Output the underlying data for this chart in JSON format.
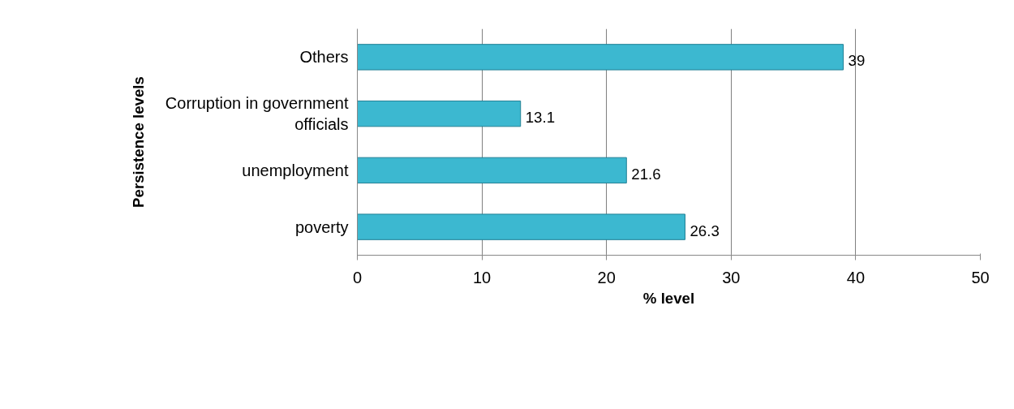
{
  "chart_data": {
    "type": "bar",
    "orientation": "horizontal",
    "xlabel": "% level",
    "ylabel": "Persistence levels",
    "categories": [
      "Others",
      "Corruption in government officials",
      "unemployment",
      "poverty"
    ],
    "values": [
      39,
      13.1,
      21.6,
      26.3
    ],
    "color": "#3cb8d0",
    "xlim": [
      0,
      50
    ],
    "xticks": [
      0,
      10,
      20,
      30,
      40,
      50
    ],
    "grid": "x",
    "data_labels": true
  }
}
